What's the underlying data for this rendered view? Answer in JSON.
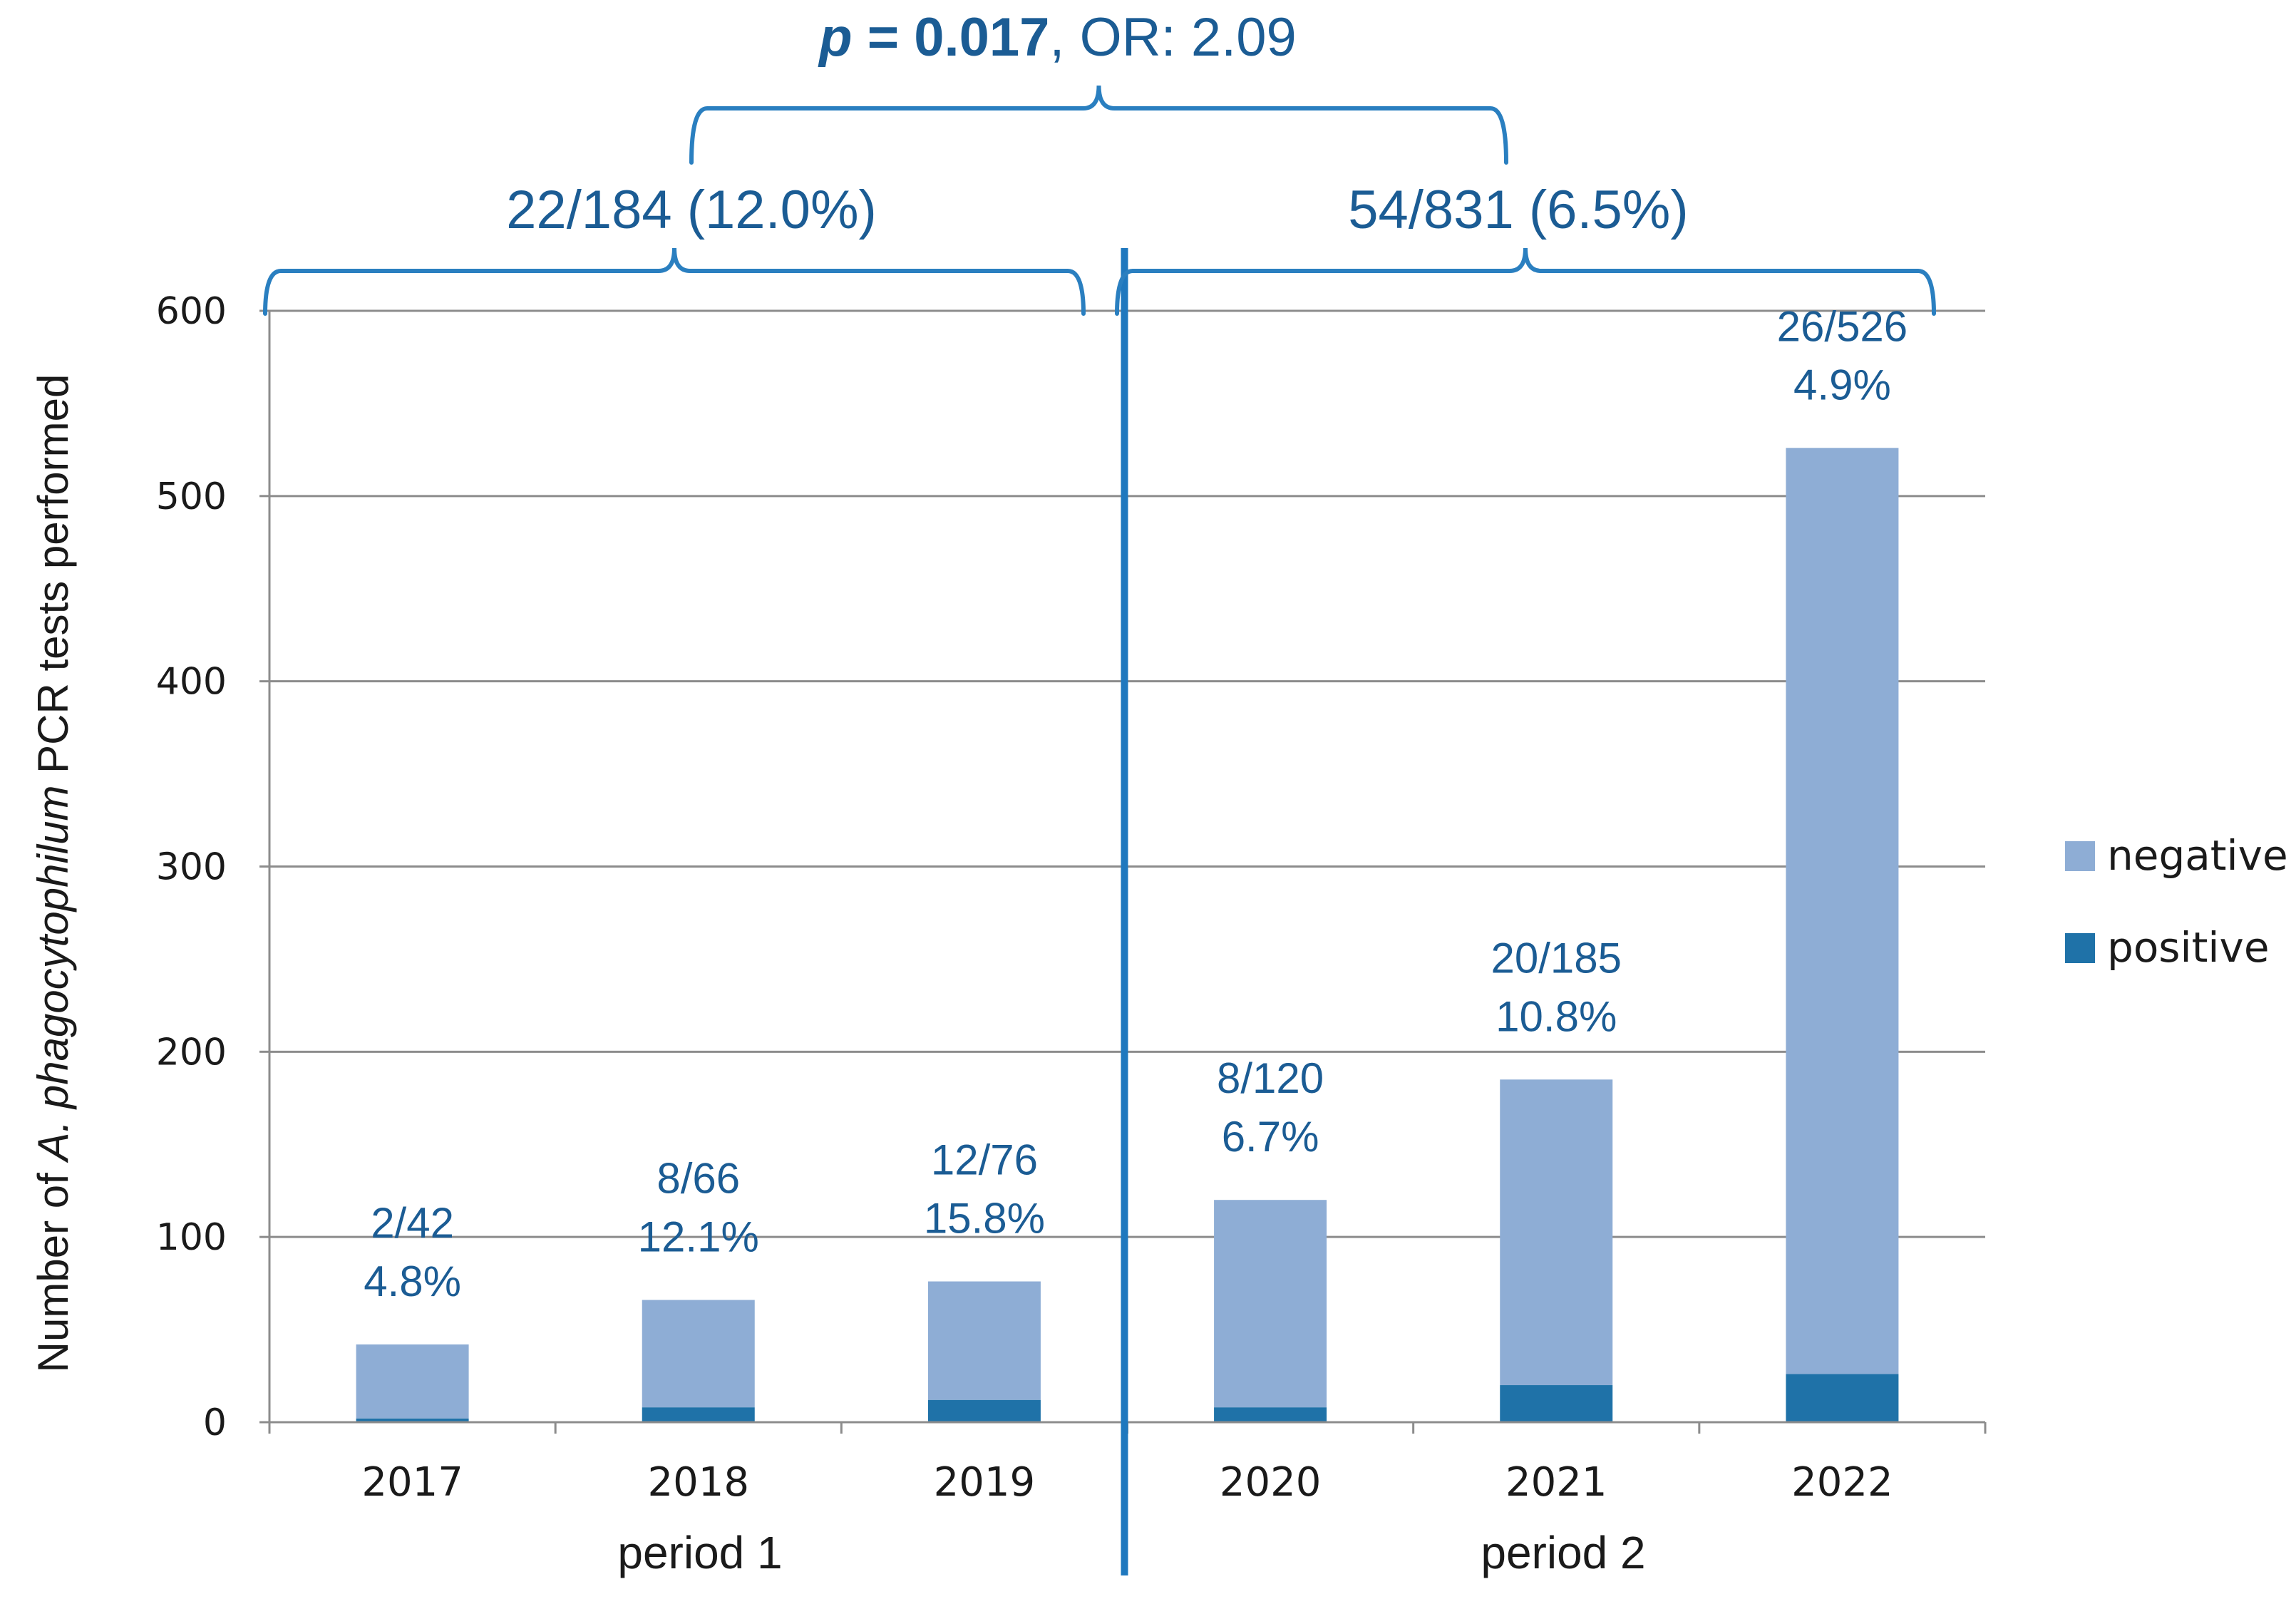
{
  "colors": {
    "negative": "#8EADD5",
    "positive": "#1F72A8",
    "annotation": "#1B5C94",
    "divider": "#1F78BE",
    "brace": "#2A7FC0",
    "grid": "#8C8C8C",
    "text": "#1A1A1A"
  },
  "chart_data": {
    "type": "bar",
    "stacked": true,
    "title": "",
    "xlabel": "",
    "ylabel_parts": [
      "Number of ",
      "A. phagocytophilum",
      " PCR tests performed"
    ],
    "ylim": [
      0,
      600
    ],
    "yticks": [
      0,
      100,
      200,
      300,
      400,
      500,
      600
    ],
    "grid": true,
    "categories": [
      "2017",
      "2018",
      "2019",
      "2020",
      "2021",
      "2022"
    ],
    "series": [
      {
        "name": "positive",
        "values": [
          2,
          8,
          12,
          8,
          20,
          26
        ]
      },
      {
        "name": "negative",
        "values": [
          40,
          58,
          64,
          112,
          165,
          500
        ]
      }
    ],
    "totals": [
      42,
      66,
      76,
      120,
      185,
      526
    ],
    "bar_labels": [
      {
        "fraction": "2/42",
        "percent": "4.8%"
      },
      {
        "fraction": "8/66",
        "percent": "12.1%"
      },
      {
        "fraction": "12/76",
        "percent": "15.8%"
      },
      {
        "fraction": "8/120",
        "percent": "6.7%"
      },
      {
        "fraction": "20/185",
        "percent": "10.8%"
      },
      {
        "fraction": "26/526",
        "percent": "4.9%"
      }
    ],
    "legend": {
      "placement": "right",
      "entries": [
        {
          "label": "negative",
          "series": "negative"
        },
        {
          "label": "positive",
          "series": "positive"
        }
      ]
    },
    "periods": [
      {
        "label": "period 1",
        "first": 0,
        "last": 2,
        "summary": "22/184 (12.0%)"
      },
      {
        "label": "period 2",
        "first": 3,
        "last": 5,
        "summary": "54/831 (6.5%)"
      }
    ],
    "comparison": {
      "p_label": "p",
      "p_rest": " = 0.017",
      "or_text": ", OR: 2.09"
    }
  }
}
